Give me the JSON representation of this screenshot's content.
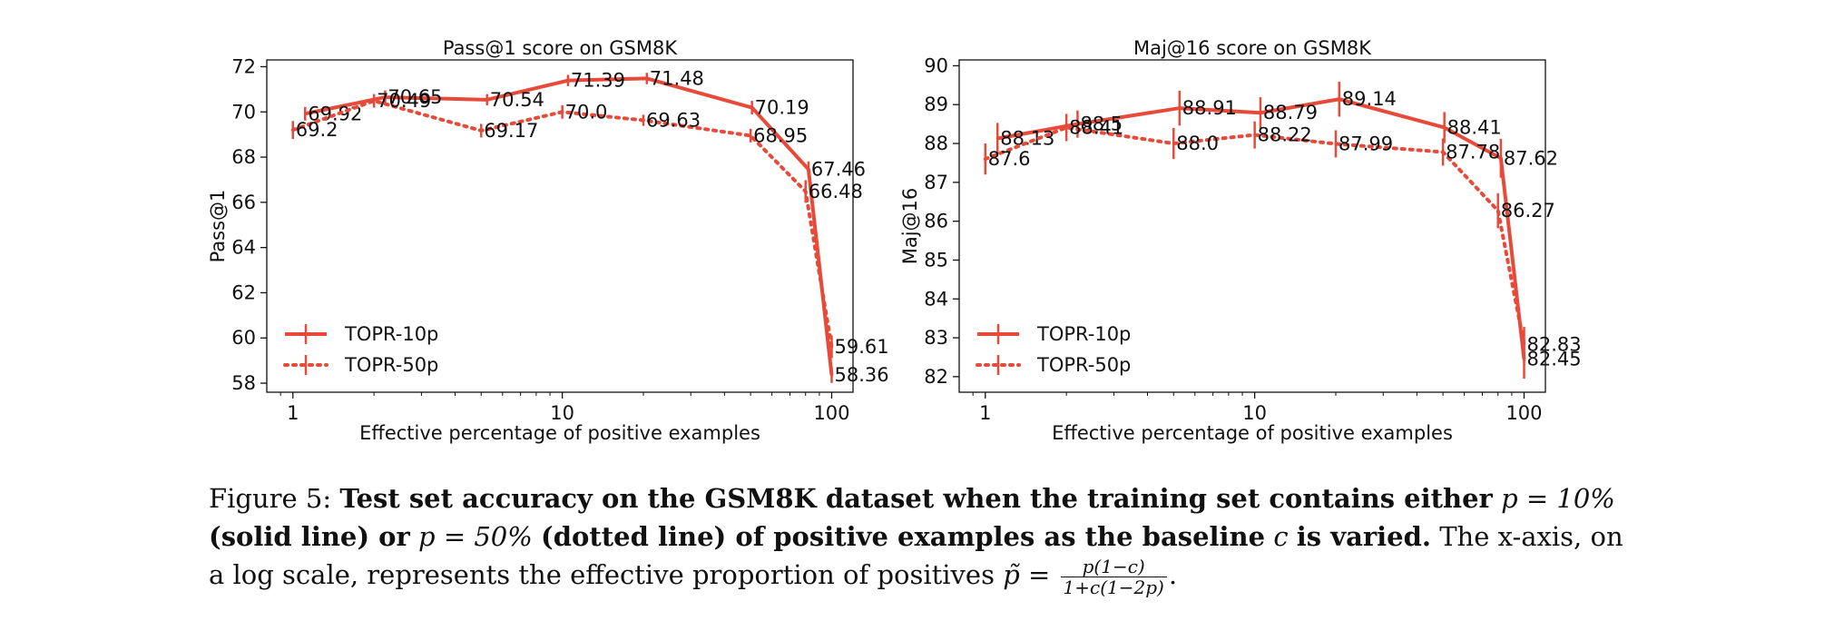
{
  "chart_data": [
    {
      "type": "line",
      "title": "Pass@1 score on GSM8K",
      "xlabel": "Effective percentage of positive examples",
      "ylabel": "Pass@1",
      "xscale": "log",
      "xlim": [
        0.8,
        120
      ],
      "ylim": [
        57.6,
        72.3
      ],
      "xticks": [
        1,
        10,
        100
      ],
      "xtick_labels": [
        "1",
        "10",
        "100"
      ],
      "yticks": [
        58,
        60,
        62,
        64,
        66,
        68,
        70,
        72
      ],
      "ytick_labels": [
        "58",
        "60",
        "62",
        "64",
        "66",
        "68",
        "70",
        "72"
      ],
      "legend_position": "lower-left",
      "series": [
        {
          "name": "TOPR-10p",
          "style": "solid",
          "x": [
            1.11,
            2.2,
            5.26,
            10.5,
            20.6,
            50.6,
            82.0,
            100.0
          ],
          "values": [
            69.92,
            70.65,
            70.54,
            71.39,
            71.48,
            70.19,
            67.46,
            58.36
          ],
          "labels": [
            "69.92",
            "70.65",
            "70.54",
            "71.39",
            "71.48",
            "70.19",
            "67.46",
            "58.36"
          ],
          "err": [
            0.3,
            0.3,
            0.25,
            0.25,
            0.25,
            0.3,
            0.35,
            0.35
          ]
        },
        {
          "name": "TOPR-50p",
          "style": "dotted",
          "x": [
            1.0,
            2.0,
            5.0,
            10.0,
            20.0,
            50.0,
            80.0,
            100.0
          ],
          "values": [
            69.2,
            70.49,
            69.17,
            70.0,
            69.63,
            68.95,
            66.48,
            59.61
          ],
          "labels": [
            "69.2",
            "70.49",
            "69.17",
            "70.0",
            "69.63",
            "68.95",
            "66.48",
            "59.61"
          ],
          "err": [
            0.4,
            0.3,
            0.3,
            0.3,
            0.25,
            0.3,
            0.5,
            0.5
          ]
        }
      ]
    },
    {
      "type": "line",
      "title": "Maj@16 score on GSM8K",
      "xlabel": "Effective percentage of positive examples",
      "ylabel": "Maj@16",
      "xscale": "log",
      "xlim": [
        0.8,
        120
      ],
      "ylim": [
        81.6,
        90.15
      ],
      "xticks": [
        1,
        10,
        100
      ],
      "xtick_labels": [
        "1",
        "10",
        "100"
      ],
      "yticks": [
        82,
        83,
        84,
        85,
        86,
        87,
        88,
        89,
        90
      ],
      "ytick_labels": [
        "82",
        "83",
        "84",
        "85",
        "86",
        "87",
        "88",
        "89",
        "90"
      ],
      "legend_position": "lower-left",
      "series": [
        {
          "name": "TOPR-10p",
          "style": "solid",
          "x": [
            1.11,
            2.2,
            5.26,
            10.5,
            20.6,
            50.6,
            82.0,
            100.0
          ],
          "values": [
            88.13,
            88.5,
            88.91,
            88.79,
            89.14,
            88.41,
            87.62,
            82.45
          ],
          "labels": [
            "88.13",
            "88.5",
            "88.91",
            "88.79",
            "89.14",
            "88.41",
            "87.62",
            "82.45"
          ],
          "err": [
            0.4,
            0.35,
            0.45,
            0.4,
            0.45,
            0.4,
            0.5,
            0.5
          ]
        },
        {
          "name": "TOPR-50p",
          "style": "dotted",
          "x": [
            1.0,
            2.0,
            5.0,
            10.0,
            20.0,
            50.0,
            80.0,
            100.0
          ],
          "values": [
            87.6,
            88.41,
            88.0,
            88.22,
            87.99,
            87.78,
            86.27,
            82.83
          ],
          "labels": [
            "87.6",
            "88.41",
            "88.0",
            "88.22",
            "87.99",
            "87.78",
            "86.27",
            "82.83"
          ],
          "err": [
            0.4,
            0.35,
            0.4,
            0.35,
            0.35,
            0.35,
            0.45,
            0.45
          ]
        }
      ]
    }
  ],
  "colors": {
    "series": "#e84a3a",
    "axis": "#111111"
  },
  "caption": {
    "figure_label": "Figure 5:",
    "bold_1": "Test set accuracy on the GSM8K dataset when the training set contains either",
    "math_1": "p = 10%",
    "bold_2": "(solid line) or",
    "math_2": "p = 50%",
    "bold_3": "(dotted line) of positive examples as the baseline",
    "math_3": "c",
    "bold_4": "is varied.",
    "plain_1": "The x-axis, on a log scale, represents the effective proportion of positives",
    "math_4": "p̃ =",
    "frac_num": "p(1−c)",
    "frac_den": "1+c(1−2p)",
    "end": "."
  }
}
